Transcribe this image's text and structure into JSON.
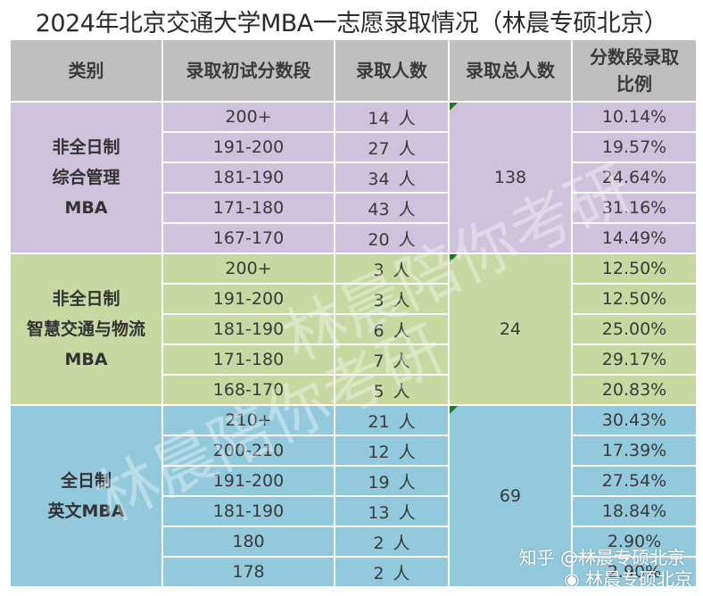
{
  "title": "2024年北京交通大学MBA一志愿录取情况（林晨专硕北京）",
  "headers": [
    "类别",
    "录取初试分数段",
    "录取人数",
    "录取总人数",
    "分数段录取比例"
  ],
  "header_ratio_line1": "分数段录取",
  "header_ratio_line2": "比例",
  "unit": "人",
  "colors": {
    "header": "#bfbfbf",
    "purple": "#cfc2dc",
    "green": "#c7d8a0",
    "blue": "#93c9dc",
    "marker": "#1e7a1e"
  },
  "groups": [
    {
      "category_lines": [
        "非全日制",
        "综合管理",
        "MBA"
      ],
      "total": "138",
      "rows": [
        {
          "range": "200+",
          "count": "14",
          "ratio": "10.14%"
        },
        {
          "range": "191-200",
          "count": "27",
          "ratio": "19.57%"
        },
        {
          "range": "181-190",
          "count": "34",
          "ratio": "24.64%"
        },
        {
          "range": "171-180",
          "count": "43",
          "ratio": "31.16%"
        },
        {
          "range": "167-170",
          "count": "20",
          "ratio": "14.49%"
        }
      ]
    },
    {
      "category_lines": [
        "非全日制",
        "智慧交通与物流",
        "MBA"
      ],
      "total": "24",
      "rows": [
        {
          "range": "200+",
          "count": "3",
          "ratio": "12.50%"
        },
        {
          "range": "191-200",
          "count": "3",
          "ratio": "12.50%"
        },
        {
          "range": "181-190",
          "count": "6",
          "ratio": "25.00%"
        },
        {
          "range": "171-180",
          "count": "7",
          "ratio": "29.17%"
        },
        {
          "range": "168-170",
          "count": "5",
          "ratio": "20.83%"
        }
      ]
    },
    {
      "category_lines": [
        "全日制",
        "英文MBA"
      ],
      "total": "69",
      "rows": [
        {
          "range": "210+",
          "count": "21",
          "ratio": "30.43%"
        },
        {
          "range": "200-210",
          "count": "12",
          "ratio": "17.39%"
        },
        {
          "range": "191-200",
          "count": "19",
          "ratio": "27.54%"
        },
        {
          "range": "181-190",
          "count": "13",
          "ratio": "18.84%"
        },
        {
          "range": "180",
          "count": "2",
          "ratio": "2.90%"
        },
        {
          "range": "178",
          "count": "2",
          "ratio": "2.90%"
        }
      ]
    }
  ],
  "watermark": "林晨陪你考研",
  "credit_zhihu": "知乎 @林晨专硕北京",
  "credit_weibo": "林晨专硕北京"
}
